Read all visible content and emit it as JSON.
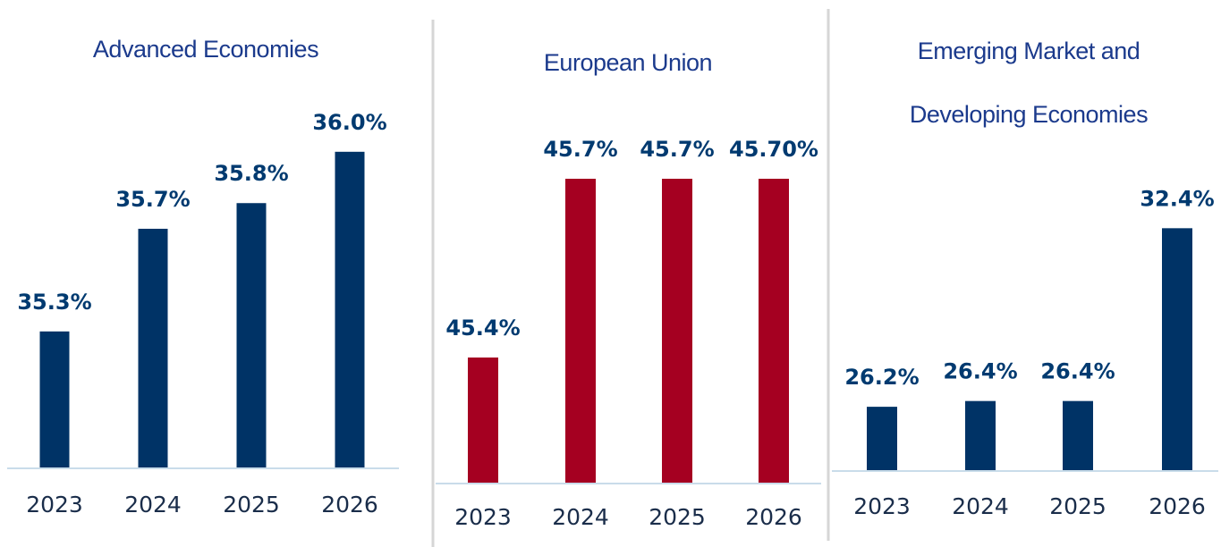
{
  "chart_data": [
    {
      "type": "bar",
      "title": "Advanced Economies",
      "categories": [
        "2023",
        "2024",
        "2025",
        "2026"
      ],
      "values": [
        35.3,
        35.7,
        35.8,
        36.0
      ],
      "value_labels": [
        "35.3%",
        "35.7%",
        "35.8%",
        "36.0%"
      ],
      "color": "#003366",
      "ylim": [
        34.77,
        36.17
      ]
    },
    {
      "type": "bar",
      "title": "European Union",
      "categories": [
        "2023",
        "2024",
        "2025",
        "2026"
      ],
      "values": [
        45.4,
        45.7,
        45.7,
        45.7
      ],
      "value_labels": [
        "45.4%",
        "45.7%",
        "45.7%",
        "45.70%"
      ],
      "color": "#a50021",
      "ylim": [
        45.19,
        45.76
      ]
    },
    {
      "type": "bar",
      "title": "Emerging Market and Developing Economies",
      "categories": [
        "2023",
        "2024",
        "2025",
        "2026"
      ],
      "values": [
        26.2,
        26.4,
        26.4,
        32.4
      ],
      "value_labels": [
        "26.2%",
        "26.4%",
        "26.4%",
        "32.4%"
      ],
      "color": "#003366",
      "ylim": [
        24,
        33
      ]
    }
  ]
}
